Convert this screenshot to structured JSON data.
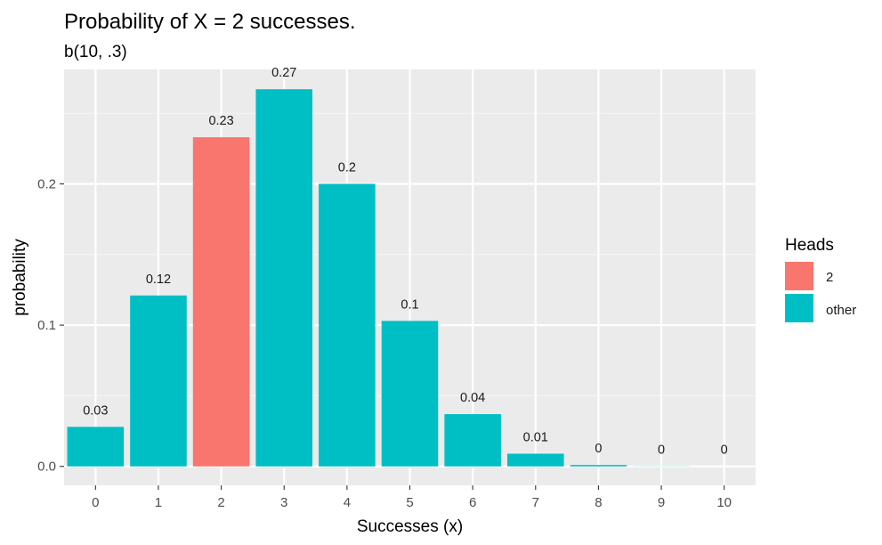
{
  "chart_data": {
    "type": "bar",
    "title": "Probability of X = 2 successes.",
    "subtitle": "b(10, .3)",
    "xlabel": "Successes (x)",
    "ylabel": "probability",
    "categories": [
      "0",
      "1",
      "2",
      "3",
      "4",
      "5",
      "6",
      "7",
      "8",
      "9",
      "10"
    ],
    "values": [
      0.028,
      0.121,
      0.233,
      0.267,
      0.2,
      0.103,
      0.037,
      0.009,
      0.001,
      0.0001,
      5.9e-06
    ],
    "data_labels": [
      "0.03",
      "0.12",
      "0.23",
      "0.27",
      "0.2",
      "0.1",
      "0.04",
      "0.01",
      "0",
      "0",
      "0"
    ],
    "groups": [
      "other",
      "other",
      "2",
      "other",
      "other",
      "other",
      "other",
      "other",
      "other",
      "other",
      "other"
    ],
    "ylim": [
      -0.0134,
      0.281
    ],
    "yticks": [
      0.0,
      0.1,
      0.2
    ],
    "ytick_labels": [
      "0.0",
      "0.1",
      "0.2"
    ],
    "grid": true,
    "legend": {
      "title": "Heads",
      "position": "right",
      "entries": [
        {
          "label": "2",
          "color": "#F8766D"
        },
        {
          "label": "other",
          "color": "#00BFC4"
        }
      ]
    },
    "colors": {
      "panel": "#EBEBEB",
      "grid_major": "#FFFFFF",
      "grid_minor": "#F5F5F5",
      "highlight": "#F8766D",
      "other": "#00BFC4"
    }
  }
}
